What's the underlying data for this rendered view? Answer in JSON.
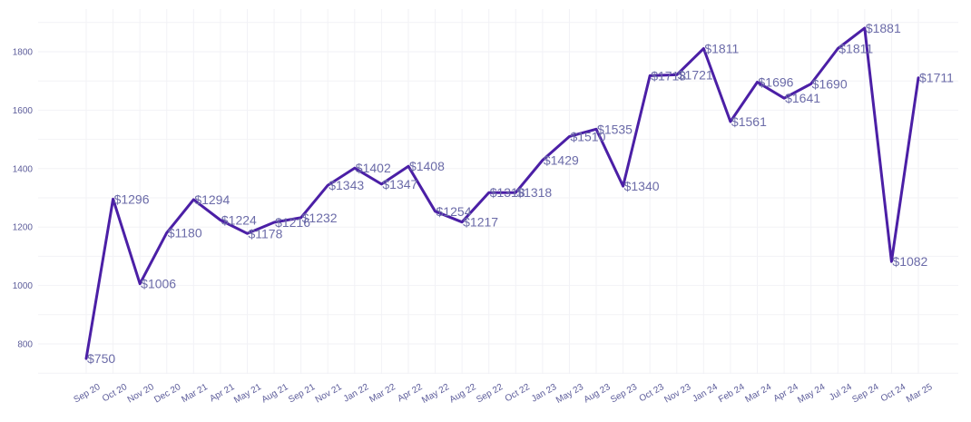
{
  "chart_data": {
    "type": "line",
    "title": "",
    "xlabel": "",
    "ylabel": "",
    "ylim": [
      700,
      1950
    ],
    "yticks": [
      800,
      1000,
      1200,
      1400,
      1600,
      1800
    ],
    "grid": true,
    "line_color": "#4b1fa6",
    "value_prefix": "$",
    "categories": [
      "Sep 20",
      "Oct 20",
      "Nov 20",
      "Dec 20",
      "Mar 21",
      "Apr 21",
      "May 21",
      "Aug 21",
      "Sep 21",
      "Nov 21",
      "Jan 22",
      "Mar 22",
      "Apr 22",
      "May 22",
      "Aug 22",
      "Sep 22",
      "Oct 22",
      "Jan 23",
      "May 23",
      "Aug 23",
      "Sep 23",
      "Oct 23",
      "Nov 23",
      "Jan 24",
      "Feb 24",
      "Mar 24",
      "Apr 24",
      "May 24",
      "Jul 24",
      "Sep 24",
      "Oct 24",
      "Mar 25"
    ],
    "values": [
      750,
      1296,
      1006,
      1180,
      1294,
      1224,
      1178,
      1216,
      1232,
      1343,
      1402,
      1347,
      1408,
      1254,
      1217,
      1318,
      1318,
      1429,
      1510,
      1535,
      1340,
      1718,
      1721,
      1811,
      1561,
      1696,
      1641,
      1690,
      1811,
      1881,
      1082,
      1711
    ]
  }
}
